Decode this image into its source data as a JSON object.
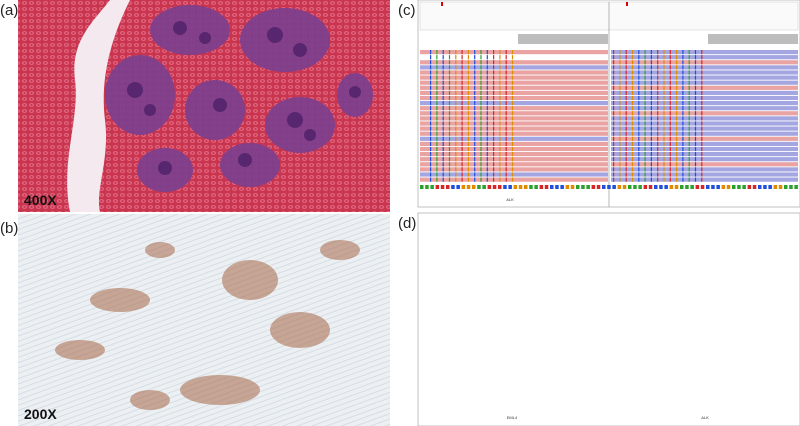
{
  "panels": [
    {
      "label": "(a)",
      "magnification": "400X"
    },
    {
      "label": "(b)",
      "magnification": "200X"
    },
    {
      "label": "(c)",
      "genes": [
        "ALK"
      ]
    },
    {
      "label": "(d)",
      "genes": [
        "EML4",
        "ALK"
      ]
    }
  ]
}
